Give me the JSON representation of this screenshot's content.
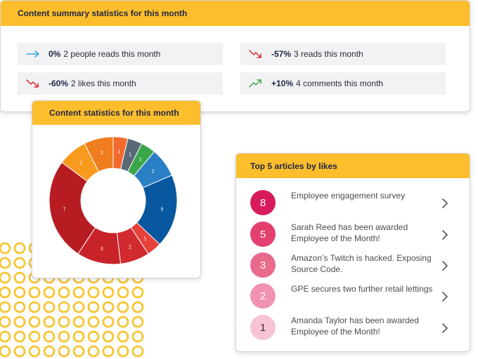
{
  "summary": {
    "title": "Content summary statistics for this month",
    "stats": [
      {
        "pct": "0%",
        "text": "2 people reads this month",
        "trend": "flat-arrow-icon",
        "color": "#3aa8e0"
      },
      {
        "pct": "-57%",
        "text": "3 reads this month",
        "trend": "trend-down-icon",
        "color": "#d9272e"
      },
      {
        "pct": "-60%",
        "text": "2 likes this month",
        "trend": "trend-down-icon",
        "color": "#d9272e"
      },
      {
        "pct": "+10%",
        "text": "4 comments this month",
        "trend": "trend-up-icon",
        "color": "#3aa64a"
      }
    ]
  },
  "chart": {
    "title": "Content statistics for this month"
  },
  "chart_data": {
    "type": "pie",
    "donut": true,
    "slices": [
      {
        "value": 1,
        "color": "#f26a2e"
      },
      {
        "value": 1,
        "color": "#586a78"
      },
      {
        "value": 1,
        "color": "#3aa64a"
      },
      {
        "value": 2,
        "color": "#2b7fc5"
      },
      {
        "value": 5,
        "color": "#08589f"
      },
      {
        "value": 1,
        "color": "#e8403a"
      },
      {
        "value": 2,
        "color": "#d12a2f"
      },
      {
        "value": 3,
        "color": "#c82329"
      },
      {
        "value": 7,
        "color": "#b71c22"
      },
      {
        "value": 2,
        "color": "#f79a1e"
      },
      {
        "value": 2,
        "color": "#f07d1e"
      }
    ]
  },
  "articles": {
    "title": "Top 5 articles by likes",
    "items": [
      {
        "likes": "8",
        "title": "Employee engagement survey",
        "badge_bg": "#d81b5d",
        "badge_fg": "#ffffff"
      },
      {
        "likes": "5",
        "title": "Sarah Reed has been awarded Employee of the Month!",
        "badge_bg": "#e3406f",
        "badge_fg": "#ffffff"
      },
      {
        "likes": "3",
        "title": "Amazon’s Twitch is hacked. Exposing Source Code.",
        "badge_bg": "#ea6a8e",
        "badge_fg": "#ffffff"
      },
      {
        "likes": "2",
        "title": "GPE secures two further retail lettings",
        "badge_bg": "#f193b0",
        "badge_fg": "#ffffff"
      },
      {
        "likes": "1",
        "title": "Amanda Taylor has been awarded Employee of the Month!",
        "badge_bg": "#f8c4d5",
        "badge_fg": "#3a2a33"
      }
    ]
  }
}
